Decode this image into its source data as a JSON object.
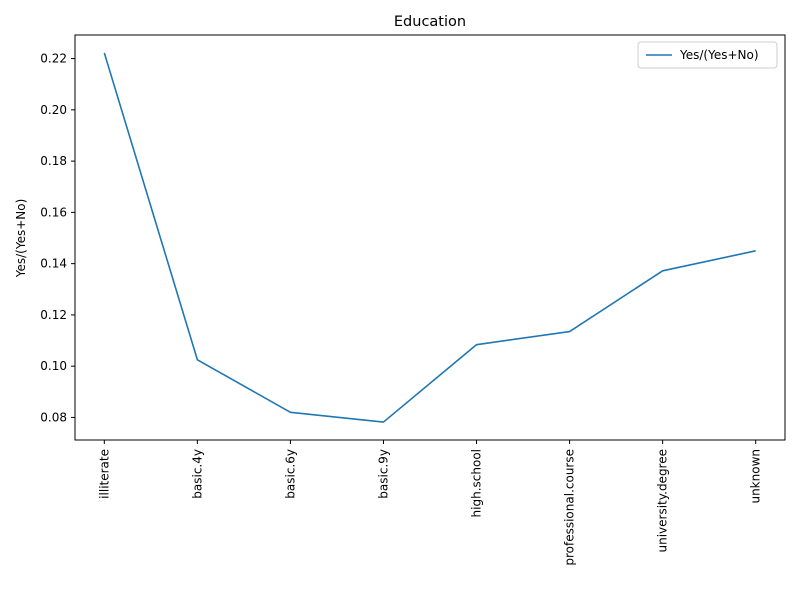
{
  "chart_data": {
    "type": "line",
    "title": "Education",
    "xlabel": "",
    "ylabel": "Yes/(Yes+No)",
    "categories": [
      "illiterate",
      "basic.4y",
      "basic.6y",
      "basic.9y",
      "high.school",
      "professional.course",
      "university.degree",
      "unknown"
    ],
    "series": [
      {
        "name": "Yes/(Yes+No)",
        "values": [
          0.2222,
          0.1025,
          0.082,
          0.0782,
          0.1084,
          0.1135,
          0.1372,
          0.145
        ],
        "color": "#1f77b4"
      }
    ],
    "ylim": [
      0.0712,
      0.2292
    ],
    "yticks": [
      0.08,
      0.1,
      0.12,
      0.14,
      0.16,
      0.18,
      0.2,
      0.22
    ],
    "ytick_labels": [
      "0.08",
      "0.10",
      "0.12",
      "0.14",
      "0.16",
      "0.18",
      "0.20",
      "0.22"
    ],
    "xtick_rotation": "vertical",
    "grid": false,
    "legend_position": "top-right"
  }
}
